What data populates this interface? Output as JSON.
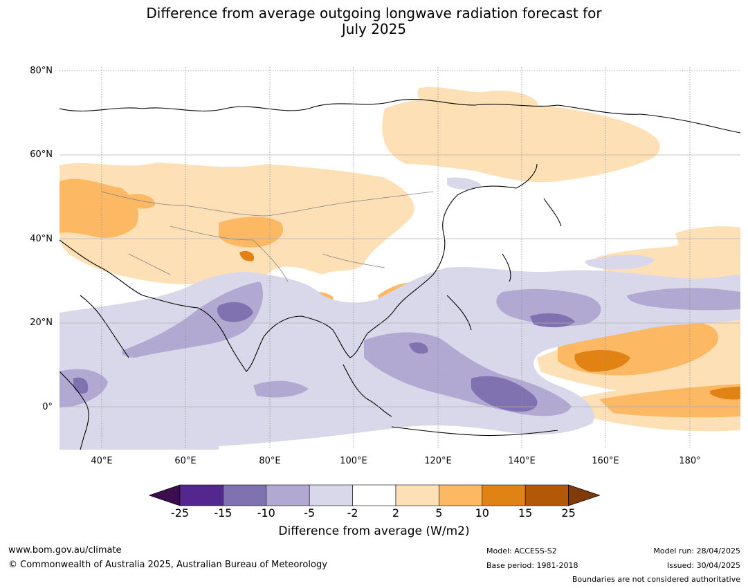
{
  "title_line1": "Difference from average outgoing longwave radiation forecast for",
  "title_line2": "July 2025",
  "lat_labels": [
    "80°N",
    "60°N",
    "40°N",
    "20°N",
    "0°"
  ],
  "lon_labels": [
    "40°E",
    "60°E",
    "80°E",
    "100°E",
    "120°E",
    "140°E",
    "160°E",
    "180°"
  ],
  "colorbar": {
    "ticks": [
      "-25",
      "-15",
      "-10",
      "-5",
      "-2",
      "2",
      "5",
      "10",
      "15",
      "25"
    ],
    "colors": [
      "#3b0f4f",
      "#54278f",
      "#8072b0",
      "#b1a9d2",
      "#d9d8eb",
      "#ffffff",
      "#fee0b6",
      "#fdb863",
      "#e08214",
      "#b35806",
      "#7f3b08"
    ],
    "label": "Difference from average (W/m2)"
  },
  "footer": {
    "url": "www.bom.gov.au/climate",
    "copyright": "© Commonwealth of Australia 2025, Australian Bureau of Meteorology",
    "model": "Model: ACCESS-S2",
    "base_period": "Base period: 1981-2018",
    "model_run": "Model run: 28/04/2025",
    "issued": "Issued: 30/04/2025",
    "boundaries": "Boundaries are not considered authoritative"
  }
}
